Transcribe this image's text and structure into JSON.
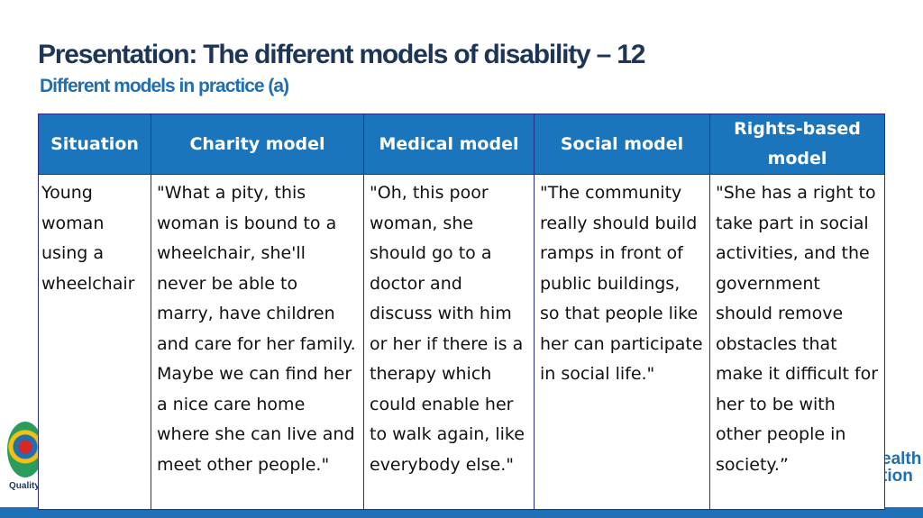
{
  "slide": {
    "title": "Presentation: The different models of disability – 12",
    "subtitle": "Different models in practice (a)",
    "logo_left_text": "Quality",
    "logo_right_text": "ealth tion"
  },
  "table": {
    "headers": [
      "Situation",
      "Charity model",
      "Medical model",
      "Social model",
      "Rights-based model"
    ],
    "rows": [
      [
        "Young woman using a wheelchair",
        "\"What a pity, this woman is bound to a wheelchair, she'll never be able to marry, have children and care for her family. Maybe we can find her a nice care home where she can live and meet other people.\"",
        "\"Oh, this poor woman, she should go to a doctor and discuss with him or her if there is a therapy which could enable her to walk again, like everybody else.\"",
        "\"The community really should build ramps in front of public buildings, so that people like her can participate in social life.\"",
        "\"She has a right to take part in social activities, and the government should remove obstacles that make it difficult for her to be with other people in society.”"
      ]
    ]
  },
  "colors": {
    "header_bg": "#1b75bc",
    "title": "#1d3557",
    "subtitle": "#1f6fb2",
    "border": "#2b2b8a"
  }
}
